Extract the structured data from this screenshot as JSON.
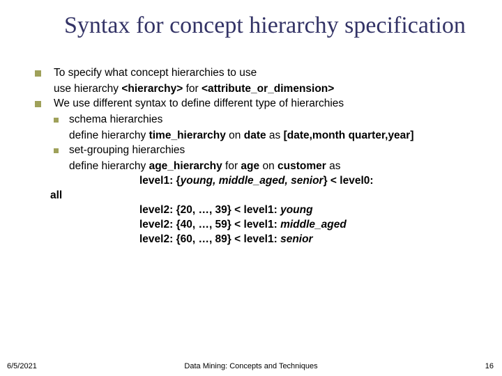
{
  "title": "Syntax for concept hierarchy specification",
  "bullets": {
    "p1": "To specify what concept hierarchies to use",
    "p1sub_a": "use hierarchy ",
    "p1sub_b": "<hierarchy>",
    "p1sub_c": " for ",
    "p1sub_d": "<attribute_or_dimension>",
    "p2": "We use different syntax to define different type of hierarchies",
    "p2a": "schema hierarchies",
    "p2a_def_a": "define hierarchy ",
    "p2a_def_b": "time_hierarchy",
    "p2a_def_c": " on ",
    "p2a_def_d": "date",
    "p2a_def_e": " as ",
    "p2a_def_f": "[date,month quarter,year]",
    "p2b": "set-grouping hierarchies",
    "p2b_def_a": "define hierarchy ",
    "p2b_def_b": "age_hierarchy",
    "p2b_def_c": " for ",
    "p2b_def_d": "age",
    "p2b_def_e": " on ",
    "p2b_def_f": "customer",
    "p2b_def_g": " as",
    "lvl1_a": "level1: {",
    "lvl1_b": "young, middle_aged, senior",
    "lvl1_c": "} < level0: ",
    "all": "all",
    "lvl2a_a": "level2: ",
    "lvl2a_b": "{20, …, 39}",
    "lvl2a_c": " < level1: ",
    "lvl2a_d": "young",
    "lvl2b_a": "level2: ",
    "lvl2b_b": "{40, …, 59}",
    "lvl2b_c": " < level1: ",
    "lvl2b_d": "middle_aged",
    "lvl2c_a": "level2: ",
    "lvl2c_b": "{60, …, 89}",
    "lvl2c_c": " < level1: ",
    "lvl2c_d": "senior"
  },
  "footer": {
    "date": "6/5/2021",
    "center": "Data Mining: Concepts and Techniques",
    "page": "16"
  },
  "colors": {
    "title": "#333366",
    "bullet": "#9fa15a",
    "text": "#000000",
    "background": "#ffffff"
  }
}
